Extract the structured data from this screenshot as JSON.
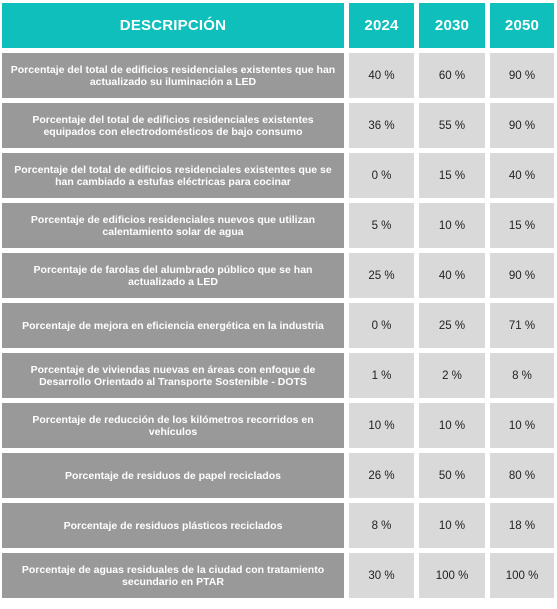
{
  "header": {
    "description": "DESCRIPCIÓN",
    "years": [
      "2024",
      "2030",
      "2050"
    ]
  },
  "rows": [
    {
      "label": "Porcentaje del total de edificios residenciales existentes que han actualizado su iluminación a LED",
      "v2024": "40 %",
      "v2030": "60 %",
      "v2050": "90 %"
    },
    {
      "label": "Porcentaje del total de edificios residenciales existentes equipados con electrodomésticos de bajo consumo",
      "v2024": "36 %",
      "v2030": "55 %",
      "v2050": "90 %"
    },
    {
      "label": "Porcentaje del total de edificios residenciales existentes que se han cambiado a estufas eléctricas para cocinar",
      "v2024": "0 %",
      "v2030": "15 %",
      "v2050": "40 %"
    },
    {
      "label": "Porcentaje de edificios residenciales nuevos que utilizan calentamiento solar de agua",
      "v2024": "5 %",
      "v2030": "10 %",
      "v2050": "15 %"
    },
    {
      "label": "Porcentaje de farolas del alumbrado público que se han actualizado a LED",
      "v2024": "25 %",
      "v2030": "40 %",
      "v2050": "90 %"
    },
    {
      "label": "Porcentaje de mejora en eficiencia energética en la industria",
      "v2024": "0 %",
      "v2030": "25 %",
      "v2050": "71 %"
    },
    {
      "label": "Porcentaje de viviendas nuevas en áreas con enfoque de Desarrollo Orientado al Transporte Sostenible - DOTS",
      "v2024": "1 %",
      "v2030": "2 %",
      "v2050": "8 %"
    },
    {
      "label": "Porcentaje de reducción de los kilómetros recorridos en vehículos",
      "v2024": "10 %",
      "v2030": "10 %",
      "v2050": "10 %"
    },
    {
      "label": "Porcentaje de residuos de papel reciclados",
      "v2024": "26 %",
      "v2030": "50 %",
      "v2050": "80 %"
    },
    {
      "label": "Porcentaje de residuos plásticos reciclados",
      "v2024": "8 %",
      "v2030": "10 %",
      "v2050": "18 %"
    },
    {
      "label": "Porcentaje de aguas residuales de la ciudad con tratamiento secundario en PTAR",
      "v2024": "30 %",
      "v2030": "100 %",
      "v2050": "100 %"
    }
  ],
  "colors": {
    "header_bg": "#0fbfbb",
    "desc_bg": "#999999",
    "value_bg": "#d9d9d9"
  }
}
